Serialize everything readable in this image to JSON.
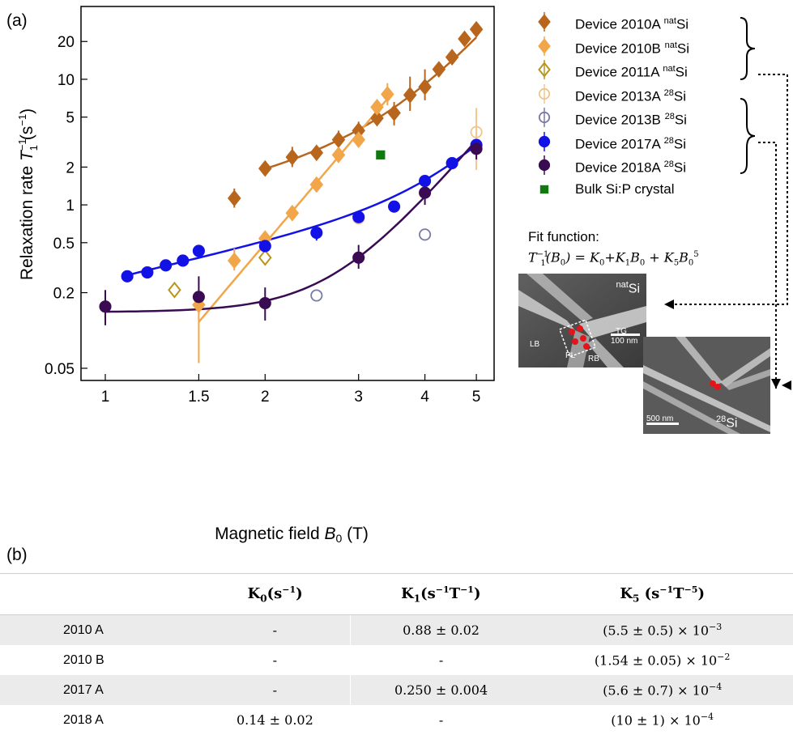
{
  "panel_labels": {
    "a": "(a)",
    "b": "(b)"
  },
  "chart_data": {
    "type": "scatter",
    "xlabel": "Magnetic field B0 (T)",
    "ylabel": "Relaxation rate T1^-1 (s^-1)",
    "x_scale": "log",
    "y_scale": "log",
    "xlim": [
      0.9,
      5.4
    ],
    "ylim": [
      0.04,
      38
    ],
    "x_ticks": [
      1,
      1.5,
      2,
      3,
      4,
      5
    ],
    "x_tick_labels": [
      "1",
      "1.5",
      "2",
      "3",
      "4",
      "5"
    ],
    "y_ticks": [
      0.05,
      0.2,
      0.5,
      1,
      2,
      5,
      10,
      20
    ],
    "y_tick_labels": [
      "0.05",
      "0.2",
      "0.5",
      "1",
      "2",
      "5",
      "10",
      "20"
    ],
    "grid": false,
    "series": [
      {
        "name": "Device 2010A natSi",
        "color": "#b8661d",
        "marker": "diamond-filled",
        "points": [
          [
            1.75,
            1.13
          ],
          [
            2.0,
            1.95
          ],
          [
            2.25,
            2.4
          ],
          [
            2.5,
            2.6
          ],
          [
            2.75,
            3.3
          ],
          [
            3.0,
            3.9
          ],
          [
            3.25,
            4.9
          ],
          [
            3.5,
            5.4
          ],
          [
            3.75,
            7.5
          ],
          [
            4.0,
            8.7
          ],
          [
            4.25,
            12
          ],
          [
            4.5,
            15
          ],
          [
            4.75,
            21
          ],
          [
            5.0,
            25
          ]
        ],
        "errors": [
          [
            1.75,
            0.95,
            1.35
          ],
          [
            2.25,
            2.0,
            2.9
          ],
          [
            2.75,
            2.8,
            3.9
          ],
          [
            3.0,
            3.3,
            4.6
          ],
          [
            3.5,
            4.3,
            6.6
          ],
          [
            3.75,
            5.6,
            10.5
          ],
          [
            4.0,
            6.8,
            12
          ]
        ]
      },
      {
        "name": "Device 2010B natSi",
        "color": "#f2a64a",
        "marker": "diamond-filled",
        "points": [
          [
            1.5,
            0.16
          ],
          [
            1.75,
            0.36
          ],
          [
            2.0,
            0.54
          ],
          [
            2.25,
            0.86
          ],
          [
            2.5,
            1.45
          ],
          [
            2.75,
            2.5
          ],
          [
            3.0,
            3.3
          ],
          [
            3.25,
            6.0
          ],
          [
            3.4,
            7.6
          ]
        ],
        "errors": [
          [
            1.5,
            0.055,
            0.19
          ],
          [
            1.75,
            0.3,
            0.45
          ],
          [
            3.4,
            6.2,
            9.3
          ]
        ]
      },
      {
        "name": "Device 2011A natSi",
        "color": "#b8961b",
        "marker": "diamond-open",
        "points": [
          [
            1.35,
            0.21
          ],
          [
            2.0,
            0.38
          ]
        ],
        "errors": []
      },
      {
        "name": "Device 2013A 28Si",
        "color": "#f0c58e",
        "marker": "circle-open",
        "points": [
          [
            3.0,
            0.78
          ],
          [
            5.0,
            3.8
          ]
        ],
        "errors": [
          [
            3.0,
            0.72,
            0.86
          ],
          [
            5.0,
            1.9,
            5.9
          ]
        ]
      },
      {
        "name": "Device 2013B 28Si",
        "color": "#7a7aaa",
        "marker": "circle-open",
        "points": [
          [
            2.5,
            0.19
          ],
          [
            4.0,
            0.58
          ]
        ],
        "errors": []
      },
      {
        "name": "Device 2017A 28Si",
        "color": "#1212e6",
        "marker": "circle-filled",
        "points": [
          [
            1.1,
            0.27
          ],
          [
            1.2,
            0.29
          ],
          [
            1.3,
            0.33
          ],
          [
            1.4,
            0.36
          ],
          [
            1.5,
            0.43
          ],
          [
            2.0,
            0.47
          ],
          [
            2.5,
            0.6
          ],
          [
            3.0,
            0.8
          ],
          [
            3.5,
            0.97
          ],
          [
            4.0,
            1.55
          ],
          [
            4.5,
            2.15
          ],
          [
            5.0,
            3.0
          ]
        ],
        "errors": [
          [
            2.5,
            0.52,
            0.68
          ]
        ]
      },
      {
        "name": "Device 2018A 28Si",
        "color": "#3a0b52",
        "marker": "circle-filled",
        "points": [
          [
            1.0,
            0.155
          ],
          [
            1.5,
            0.185
          ],
          [
            2.0,
            0.165
          ],
          [
            3.0,
            0.38
          ],
          [
            4.0,
            1.25
          ],
          [
            5.0,
            2.8
          ]
        ],
        "errors": [
          [
            1.0,
            0.11,
            0.21
          ],
          [
            1.5,
            0.14,
            0.27
          ],
          [
            2.0,
            0.12,
            0.22
          ],
          [
            3.0,
            0.31,
            0.48
          ],
          [
            4.0,
            1.0,
            1.55
          ],
          [
            5.0,
            2.3,
            3.3
          ]
        ]
      },
      {
        "name": "Bulk Si:P crystal",
        "color": "#127812",
        "marker": "square-filled",
        "points": [
          [
            3.3,
            2.5
          ]
        ],
        "errors": []
      }
    ],
    "fits": [
      {
        "series": "Device 2010A natSi",
        "color": "#b8661d",
        "K0": 0,
        "K1": 0.88,
        "K5": 0.0055,
        "range": [
          2.0,
          5.0
        ]
      },
      {
        "series": "Device 2010B natSi",
        "color": "#f2a64a",
        "K0": 0,
        "K1": 0,
        "K5": 0.0154,
        "range": [
          1.5,
          3.45
        ]
      },
      {
        "series": "Device 2017A 28Si",
        "color": "#1212e6",
        "K0": 0,
        "K1": 0.25,
        "K5": 0.00056,
        "range": [
          1.1,
          5.0
        ]
      },
      {
        "series": "Device 2018A 28Si",
        "color": "#3a0b52",
        "K0": 0.14,
        "K1": 0,
        "K5": 0.001,
        "range": [
          1.0,
          5.0
        ]
      }
    ]
  },
  "legend": [
    {
      "device": "Device 2010A",
      "iso": "nat",
      "el": "Si",
      "color": "#b8661d",
      "marker": "diamond-filled"
    },
    {
      "device": "Device 2010B",
      "iso": "nat",
      "el": "Si",
      "color": "#f2a64a",
      "marker": "diamond-filled"
    },
    {
      "device": "Device 2011A",
      "iso": "nat",
      "el": "Si",
      "color": "#b8961b",
      "marker": "diamond-open"
    },
    {
      "device": "Device 2013A",
      "iso": "28",
      "el": "Si",
      "color": "#f0c58e",
      "marker": "circle-open"
    },
    {
      "device": "Device 2013B",
      "iso": "28",
      "el": "Si",
      "color": "#7a7aaa",
      "marker": "circle-open"
    },
    {
      "device": "Device 2017A",
      "iso": "28",
      "el": "Si",
      "color": "#1212e6",
      "marker": "circle-filled"
    },
    {
      "device": "Device 2018A",
      "iso": "28",
      "el": "Si",
      "color": "#3a0b52",
      "marker": "circle-filled"
    },
    {
      "device": "Bulk Si:P crystal",
      "iso": "",
      "el": "",
      "color": "#127812",
      "marker": "square-filled"
    }
  ],
  "fit_function": {
    "title": "Fit function:",
    "formula": "T1^-1(B0) = K0+K1B0 + K5B0^5"
  },
  "images": {
    "nat_label_iso": "nat",
    "nat_label_el": "Si",
    "nat_labels": [
      "LB",
      "PL",
      "RB",
      "TG"
    ],
    "nat_scalebar": "100 nm",
    "si28_label_iso": "28",
    "si28_label_el": "Si",
    "si28_scalebar": "500 nm"
  },
  "table": {
    "headers": [
      "",
      "K0(s^-1)",
      "K1(s^-1T^-1)",
      "K5 (s^-1T^-5)"
    ],
    "rows": [
      [
        "2010 A",
        "-",
        "0.88 ± 0.02",
        "(5.5 ± 0.5) × 10^-3"
      ],
      [
        "2010 B",
        "-",
        "-",
        "(1.54 ± 0.05) × 10^-2"
      ],
      [
        "2017 A",
        "-",
        "0.250 ± 0.004",
        "(5.6 ± 0.7) × 10^-4"
      ],
      [
        "2018 A",
        "0.14 ± 0.02",
        "-",
        "(10 ± 1) × 10^-4"
      ]
    ]
  }
}
